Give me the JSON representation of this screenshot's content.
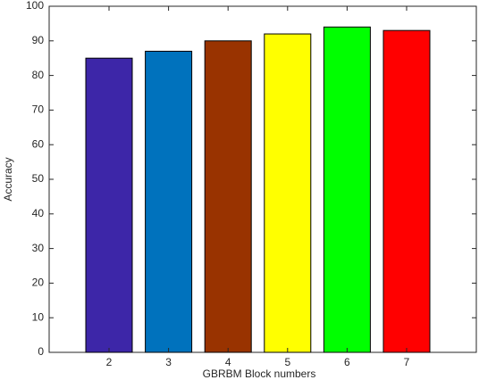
{
  "chart_data": {
    "type": "bar",
    "x_label": "GBRBM Block numbers",
    "y_label": "Accuracy",
    "categories": [
      "2",
      "3",
      "4",
      "5",
      "6",
      "7"
    ],
    "values": [
      85,
      87,
      90,
      92,
      94,
      93
    ],
    "colors": [
      "#3d26a8",
      "#0072bd",
      "#993300",
      "#ffff00",
      "#00ff00",
      "#ff0000"
    ],
    "ylim": [
      0,
      100
    ],
    "yticks": [
      0,
      10,
      20,
      30,
      40,
      50,
      60,
      70,
      80,
      90,
      100
    ],
    "grid": false
  }
}
